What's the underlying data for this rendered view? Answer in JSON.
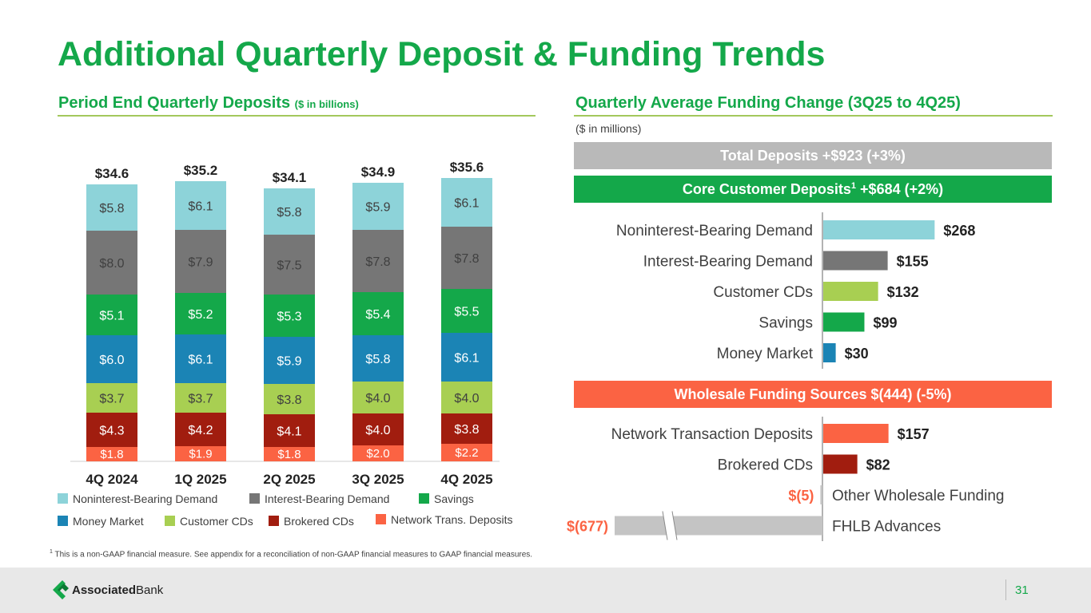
{
  "page": {
    "title": "Additional Quarterly Deposit & Funding Trends",
    "page_number": "31",
    "brand": "Associated Bank",
    "brand_bold": "Associated",
    "brand_light": "Bank",
    "footnote_mark": "1",
    "footnote": "This is a non-GAAP financial measure. See appendix for a reconciliation of non-GAAP financial measures to GAAP financial measures."
  },
  "left": {
    "title": "Period End Quarterly Deposits",
    "title_unit": "($ in billions)"
  },
  "right": {
    "title": "Quarterly Average Funding Change (3Q25 to 4Q25)",
    "unit": "($ in millions)",
    "total_banner": "Total Deposits +$923 (+3%)",
    "core_banner_prefix": "Core Customer Deposits",
    "core_banner_sup": "1",
    "core_banner_suffix": " +$684 (+2%)",
    "wholesale_banner": "Wholesale Funding Sources $(444) (-5%)"
  },
  "colors": {
    "green": "#14a84a",
    "noninterest": "#8dd3d9",
    "interest": "#767676",
    "savings": "#14a84a",
    "money_market": "#1b84b5",
    "customer_cds": "#a8cf52",
    "brokered": "#a11d0f",
    "network": "#fb6343",
    "total_banner": "#b9b9b9",
    "other": "#c4c4c4",
    "fhlb": "#c4c4c4"
  },
  "chart_data": [
    {
      "type": "bar",
      "stacked": true,
      "title": "Period End Quarterly Deposits ($ in billions)",
      "categories": [
        "4Q 2024",
        "1Q 2025",
        "2Q 2025",
        "3Q 2025",
        "4Q 2025"
      ],
      "totals": [
        "$34.6",
        "$35.2",
        "$34.1",
        "$34.9",
        "$35.6"
      ],
      "series": [
        {
          "name": "Network Trans. Deposits",
          "color": "#fb6343",
          "values": [
            1.8,
            1.9,
            1.8,
            2.0,
            2.2
          ],
          "labels": [
            "$1.8",
            "$1.9",
            "$1.8",
            "$2.0",
            "$2.2"
          ]
        },
        {
          "name": "Brokered CDs",
          "color": "#a11d0f",
          "values": [
            4.3,
            4.2,
            4.1,
            4.0,
            3.8
          ],
          "labels": [
            "$4.3",
            "$4.2",
            "$4.1",
            "$4.0",
            "$3.8"
          ]
        },
        {
          "name": "Customer CDs",
          "color": "#a8cf52",
          "values": [
            3.7,
            3.7,
            3.8,
            4.0,
            4.0
          ],
          "labels": [
            "$3.7",
            "$3.7",
            "$3.8",
            "$4.0",
            "$4.0"
          ]
        },
        {
          "name": "Money Market",
          "color": "#1b84b5",
          "values": [
            6.0,
            6.1,
            5.9,
            5.8,
            6.1
          ],
          "labels": [
            "$6.0",
            "$6.1",
            "$5.9",
            "$5.8",
            "$6.1"
          ]
        },
        {
          "name": "Savings",
          "color": "#14a84a",
          "values": [
            5.1,
            5.2,
            5.3,
            5.4,
            5.5
          ],
          "labels": [
            "$5.1",
            "$5.2",
            "$5.3",
            "$5.4",
            "$5.5"
          ]
        },
        {
          "name": "Interest-Bearing Demand",
          "color": "#767676",
          "values": [
            8.0,
            7.9,
            7.5,
            7.8,
            7.8
          ],
          "labels": [
            "$8.0",
            "$7.9",
            "$7.5",
            "$7.8",
            "$7.8"
          ]
        },
        {
          "name": "Noninterest-Bearing Demand",
          "color": "#8dd3d9",
          "values": [
            5.8,
            6.1,
            5.8,
            5.9,
            6.1
          ],
          "labels": [
            "$5.8",
            "$6.1",
            "$5.8",
            "$5.9",
            "$6.1"
          ]
        }
      ],
      "legend": [
        {
          "name": "Noninterest-Bearing Demand",
          "color": "#8dd3d9"
        },
        {
          "name": "Interest-Bearing Demand",
          "color": "#767676"
        },
        {
          "name": "Savings",
          "color": "#14a84a"
        },
        {
          "name": "Money Market",
          "color": "#1b84b5"
        },
        {
          "name": "Customer CDs",
          "color": "#a8cf52"
        },
        {
          "name": "Brokered CDs",
          "color": "#a11d0f"
        },
        {
          "name": "Network Trans. Deposits",
          "color": "#fb6343"
        }
      ],
      "ylim": [
        0,
        36
      ]
    },
    {
      "type": "bar",
      "orientation": "horizontal",
      "title": "Core Customer Deposits change ($ in millions)",
      "categories": [
        "Noninterest-Bearing Demand",
        "Interest-Bearing Demand",
        "Customer CDs",
        "Savings",
        "Money Market"
      ],
      "values": [
        268,
        155,
        132,
        99,
        30
      ],
      "labels": [
        "$268",
        "$155",
        "$132",
        "$99",
        "$30"
      ],
      "colors": [
        "#8dd3d9",
        "#767676",
        "#a8cf52",
        "#14a84a",
        "#1b84b5"
      ]
    },
    {
      "type": "bar",
      "orientation": "horizontal",
      "title": "Wholesale Funding Sources change ($ in millions)",
      "categories": [
        "Network Transaction Deposits",
        "Brokered CDs",
        "Other Wholesale Funding",
        "FHLB Advances"
      ],
      "values": [
        157,
        82,
        -5,
        -677
      ],
      "labels": [
        "$157",
        "$82",
        "$(5)",
        "$(677)"
      ],
      "colors": [
        "#fb6343",
        "#a11d0f",
        "#c4c4c4",
        "#c4c4c4"
      ],
      "axis_break": true
    }
  ]
}
